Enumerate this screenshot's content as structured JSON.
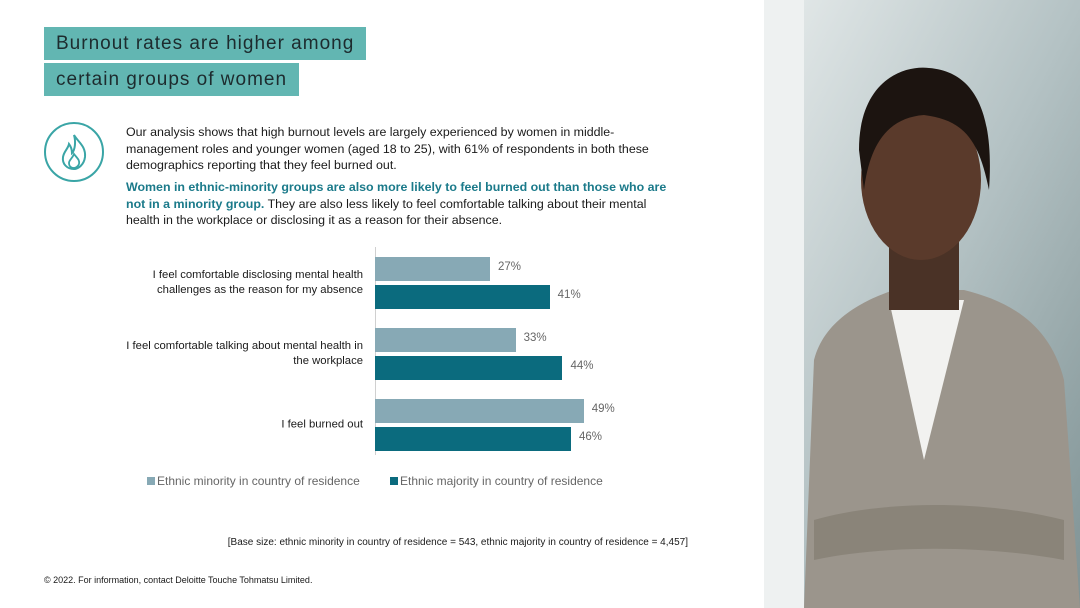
{
  "header": {
    "title_line1": "Burnout rates are higher among",
    "title_line2": "certain groups of women"
  },
  "body": {
    "paragraph1": "Our analysis shows that high burnout levels are largely experienced by women in middle-management roles and younger women (aged 18 to 25), with 61% of respondents in both these demographics reporting that they feel burned out.",
    "paragraph2_bold": "Women in ethnic-minority groups are also more likely to feel burned out than those who are not in a minority group.",
    "paragraph2_rest": " They are also less likely to feel comfortable talking about their mental health in the workplace or disclosing it as a reason for their absence."
  },
  "chart_data": {
    "type": "barh",
    "categories": [
      "I feel comfortable disclosing mental health challenges as the reason for my absence",
      "I feel comfortable talking about mental health in the workplace",
      "I feel burned out"
    ],
    "series": [
      {
        "name": "Ethnic minority in country of residence",
        "color": "#87a9b5",
        "values": [
          27,
          33,
          49
        ],
        "value_labels": [
          "27%",
          "33%",
          "49%"
        ]
      },
      {
        "name": "Ethnic majority in country of residence",
        "color": "#0b6b7e",
        "values": [
          41,
          44,
          46
        ],
        "value_labels": [
          "41%",
          "44%",
          "46%"
        ]
      }
    ],
    "xlim": [
      0,
      100
    ],
    "legend": "bottom"
  },
  "footnote": "[Base size: ethnic minority in country of residence = 543, ethnic majority in country of residence = 4,457]",
  "copyright": "© 2022. For information, contact Deloitte Touche Tohmatsu Limited."
}
